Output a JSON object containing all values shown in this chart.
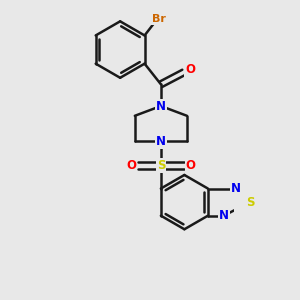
{
  "background_color": "#e8e8e8",
  "bond_color": "#1a1a1a",
  "bond_width": 1.8,
  "atom_colors": {
    "Br": "#cc6600",
    "O": "#ff0000",
    "N": "#0000ee",
    "S_sulfonyl": "#cccc00",
    "S_thia": "#cccc00",
    "C": "#1a1a1a"
  },
  "font_size": 8.5
}
